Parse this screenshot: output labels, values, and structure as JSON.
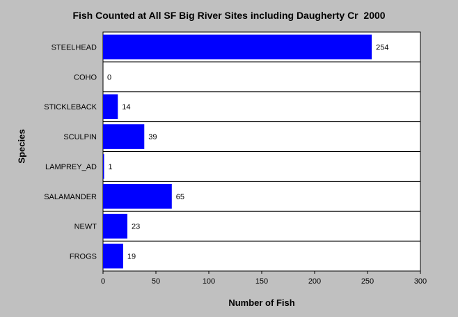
{
  "chart_data": {
    "type": "bar",
    "orientation": "horizontal",
    "title": "Fish Counted at All SF Big River Sites including Daugherty Cr  2000",
    "xlabel": "Number of Fish",
    "ylabel": "Species",
    "categories": [
      "STEELHEAD",
      "COHO",
      "STICKLEBACK",
      "SCULPIN",
      "LAMPREY_AD",
      "SALAMANDER",
      "NEWT",
      "FROGS"
    ],
    "values": [
      254,
      0,
      14,
      39,
      1,
      65,
      23,
      19
    ],
    "data_labels": [
      "254",
      "0",
      "14",
      "39",
      "1",
      "65",
      "23",
      "19"
    ],
    "xlim": [
      0,
      300
    ],
    "xticks": [
      0,
      50,
      100,
      150,
      200,
      250,
      300
    ],
    "grid": "horizontal separators",
    "bar_color": "#0000ff",
    "background": "#ffffff",
    "page_background": "#c0c0c0"
  }
}
